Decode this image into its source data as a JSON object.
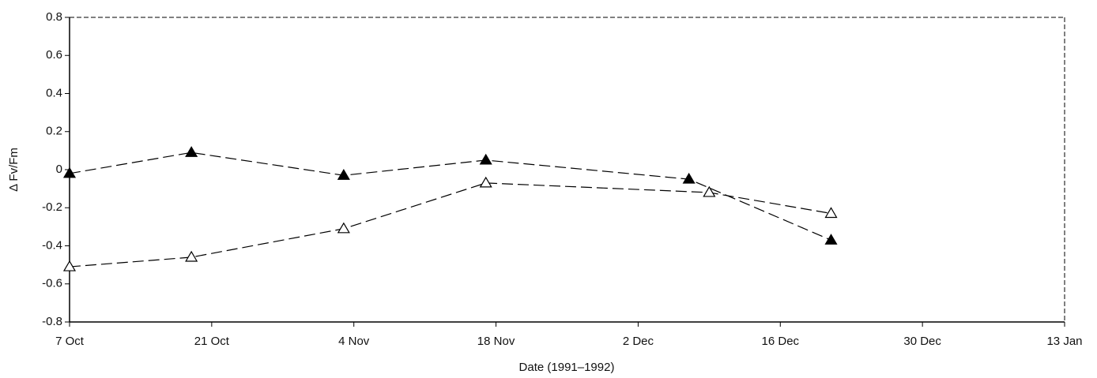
{
  "chart_data": {
    "type": "line",
    "x_label": "Date (1991–1992)",
    "y_label": "Δ Fv/Fm",
    "xlim": [
      0,
      98
    ],
    "xticks": [
      {
        "value": 0,
        "label": "7 Oct"
      },
      {
        "value": 14,
        "label": "21 Oct"
      },
      {
        "value": 28,
        "label": "4 Nov"
      },
      {
        "value": 42,
        "label": "18 Nov"
      },
      {
        "value": 56,
        "label": "2 Dec"
      },
      {
        "value": 70,
        "label": "16 Dec"
      },
      {
        "value": 84,
        "label": "30 Dec"
      },
      {
        "value": 98,
        "label": "13 Jan"
      }
    ],
    "ylim": [
      -0.8,
      0.8
    ],
    "yticks": [
      -0.8,
      -0.6,
      -0.4,
      -0.2,
      0,
      0.2,
      0.4,
      0.6,
      0.8
    ],
    "series": [
      {
        "color": "#000000",
        "marker_fill": "#000000",
        "x": [
          0,
          12,
          27,
          41,
          61,
          75
        ],
        "values": [
          -0.02,
          0.09,
          -0.03,
          0.05,
          -0.05,
          -0.37
        ]
      },
      {
        "color": "#000000",
        "marker_fill": "#ffffff",
        "x": [
          0,
          12,
          27,
          41,
          63,
          75
        ],
        "values": [
          -0.51,
          -0.46,
          -0.31,
          -0.07,
          -0.12,
          -0.23
        ]
      }
    ]
  }
}
